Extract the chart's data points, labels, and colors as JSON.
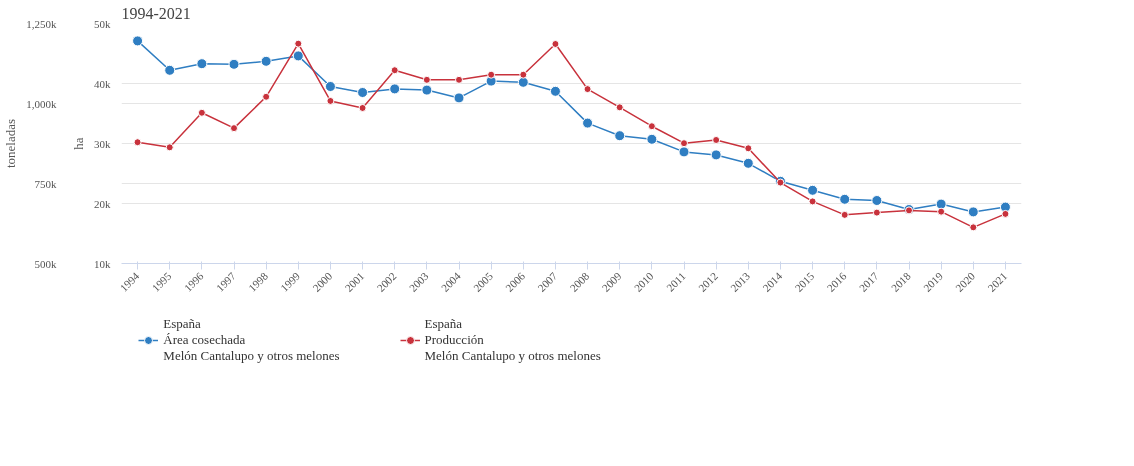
{
  "chart_data": {
    "type": "line",
    "title": "1994-2021",
    "ylabel": "ha",
    "y2label": "toneladas",
    "x": [
      1994,
      1995,
      1996,
      1997,
      1998,
      1999,
      2000,
      2001,
      2002,
      2003,
      2004,
      2005,
      2006,
      2007,
      2008,
      2009,
      2010,
      2011,
      2012,
      2013,
      2014,
      2015,
      2016,
      2017,
      2018,
      2019,
      2020,
      2021
    ],
    "xlim": [
      1993.5,
      2021.5
    ],
    "xticks": [
      1994,
      1995,
      1996,
      1997,
      1998,
      1999,
      2000,
      2001,
      2002,
      2003,
      2004,
      2005,
      2006,
      2007,
      2008,
      2009,
      2010,
      2011,
      2012,
      2013,
      2014,
      2015,
      2016,
      2017,
      2018,
      2019,
      2020,
      2021
    ],
    "ylim": [
      10000,
      50000
    ],
    "yticks": [
      {
        "value": 10000,
        "label": "10k"
      },
      {
        "value": 20000,
        "label": "20k"
      },
      {
        "value": 30000,
        "label": "30k"
      },
      {
        "value": 40000,
        "label": "40k"
      },
      {
        "value": 50000,
        "label": "50k"
      }
    ],
    "y2lim": [
      500000,
      1250000
    ],
    "y2ticks": [
      {
        "value": 500000,
        "label": "500k"
      },
      {
        "value": 750000,
        "label": "750k"
      },
      {
        "value": 1000000,
        "label": "1,000k"
      },
      {
        "value": 1250000,
        "label": "1,250k"
      }
    ],
    "series": [
      {
        "name": "España\nÁrea cosechada\nMelón Cantalupo y otros melones",
        "color": "#2f7ec2",
        "values": [
          47100,
          42200,
          43300,
          43200,
          43700,
          44600,
          39500,
          38500,
          39100,
          38900,
          37600,
          40400,
          40200,
          38700,
          33400,
          31300,
          30700,
          28600,
          28100,
          26700,
          23700,
          22200,
          20700,
          20500,
          19000,
          19900,
          18600,
          19400
        ]
      },
      {
        "name": "España\nProducción\nMelón Cantalupo y otros melones",
        "color": "#c8323c",
        "axis": "y2",
        "values": [
          879000,
          863000,
          971000,
          923000,
          1021000,
          1187000,
          1008000,
          986000,
          1104000,
          1074000,
          1074000,
          1090000,
          1090000,
          1186000,
          1045000,
          988000,
          929000,
          876000,
          886000,
          860000,
          753000,
          694000,
          652000,
          659000,
          666000,
          662000,
          613000,
          655000
        ]
      }
    ],
    "grid": "y",
    "legend": "bottom",
    "marker": "circle",
    "line_style": "solid"
  }
}
